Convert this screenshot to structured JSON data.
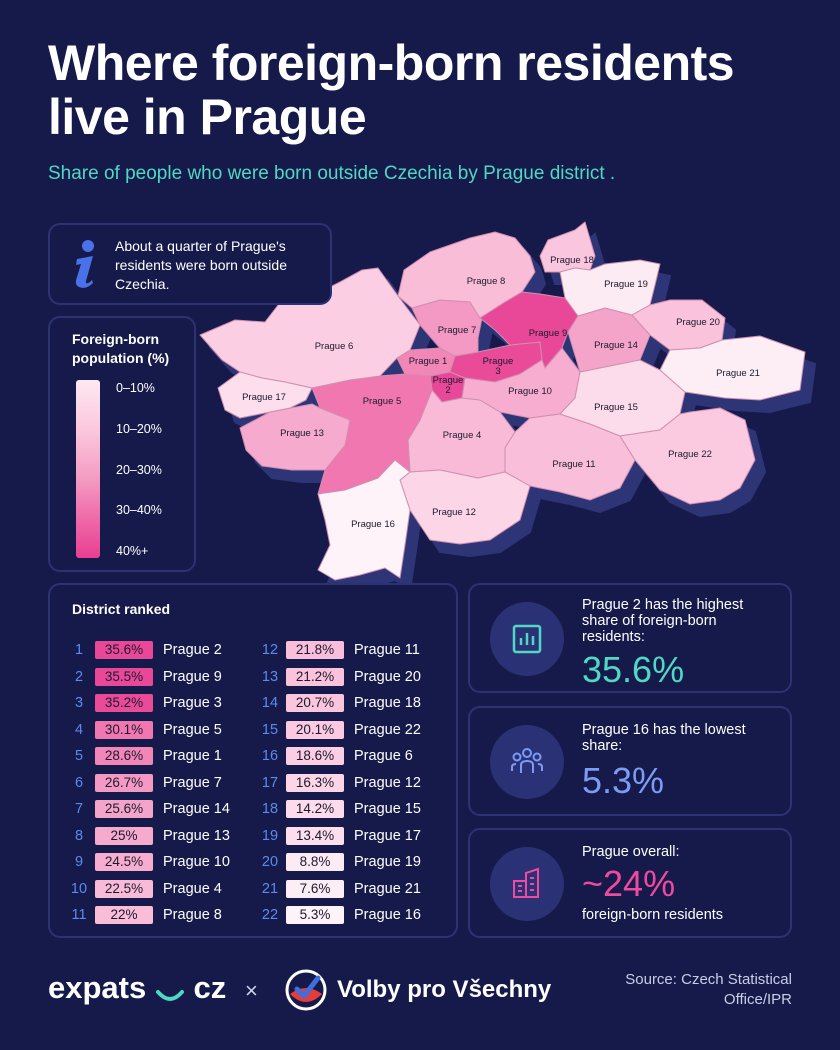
{
  "title": "Where foreign-born residents live in Prague",
  "subtitle": "Share of people who were born outside Czechia by Prague district .",
  "info": {
    "icon": "info-icon",
    "text": "About a quarter of Prague's residents were born outside Czechia."
  },
  "legend": {
    "title": "Foreign-born population (%)",
    "labels": [
      "0–10%",
      "10–20%",
      "20–30%",
      "30–40%",
      "40%+"
    ]
  },
  "colors": {
    "background": "#161a4a",
    "teal": "#4fd8c4",
    "blue_accent": "#5b8bf0",
    "pink_accent": "#ee4aa0"
  },
  "map": {
    "districts": [
      {
        "name": "Prague 1",
        "share": 28.6
      },
      {
        "name": "Prague 2",
        "share": 35.6
      },
      {
        "name": "Prague 3",
        "share": 35.2
      },
      {
        "name": "Prague 4",
        "share": 22.5
      },
      {
        "name": "Prague 5",
        "share": 30.1
      },
      {
        "name": "Prague 6",
        "share": 18.6
      },
      {
        "name": "Prague 7",
        "share": 26.7
      },
      {
        "name": "Prague 8",
        "share": 22
      },
      {
        "name": "Prague 9",
        "share": 35.5
      },
      {
        "name": "Prague 10",
        "share": 24.5
      },
      {
        "name": "Prague 11",
        "share": 21.8
      },
      {
        "name": "Prague 12",
        "share": 16.3
      },
      {
        "name": "Prague 13",
        "share": 25
      },
      {
        "name": "Prague 14",
        "share": 25.6
      },
      {
        "name": "Prague 15",
        "share": 14.2
      },
      {
        "name": "Prague 16",
        "share": 5.3
      },
      {
        "name": "Prague 17",
        "share": 13.4
      },
      {
        "name": "Prague 18",
        "share": 20.7
      },
      {
        "name": "Prague 19",
        "share": 8.8
      },
      {
        "name": "Prague 20",
        "share": 21.2
      },
      {
        "name": "Prague 21",
        "share": 7.6
      },
      {
        "name": "Prague 22",
        "share": 20.1
      }
    ]
  },
  "ranking": {
    "title": "District ranked",
    "rows": [
      {
        "rank": "1",
        "value": "35.6%",
        "name": "Prague 2",
        "share": 35.6
      },
      {
        "rank": "2",
        "value": "35.5%",
        "name": "Prague 9",
        "share": 35.5
      },
      {
        "rank": "3",
        "value": "35.2%",
        "name": "Prague 3",
        "share": 35.2
      },
      {
        "rank": "4",
        "value": "30.1%",
        "name": "Prague 5",
        "share": 30.1
      },
      {
        "rank": "5",
        "value": "28.6%",
        "name": "Prague 1",
        "share": 28.6
      },
      {
        "rank": "6",
        "value": "26.7%",
        "name": "Prague 7",
        "share": 26.7
      },
      {
        "rank": "7",
        "value": "25.6%",
        "name": "Prague 14",
        "share": 25.6
      },
      {
        "rank": "8",
        "value": "25%",
        "name": "Prague 13",
        "share": 25
      },
      {
        "rank": "9",
        "value": "24.5%",
        "name": "Prague 10",
        "share": 24.5
      },
      {
        "rank": "10",
        "value": "22.5%",
        "name": "Prague 4",
        "share": 22.5
      },
      {
        "rank": "11",
        "value": "22%",
        "name": "Prague 8",
        "share": 22
      },
      {
        "rank": "12",
        "value": "21.8%",
        "name": "Prague 11",
        "share": 21.8
      },
      {
        "rank": "13",
        "value": "21.2%",
        "name": "Prague 20",
        "share": 21.2
      },
      {
        "rank": "14",
        "value": "20.7%",
        "name": "Prague 18",
        "share": 20.7
      },
      {
        "rank": "15",
        "value": "20.1%",
        "name": "Prague 22",
        "share": 20.1
      },
      {
        "rank": "16",
        "value": "18.6%",
        "name": "Prague 6",
        "share": 18.6
      },
      {
        "rank": "17",
        "value": "16.3%",
        "name": "Prague 12",
        "share": 16.3
      },
      {
        "rank": "18",
        "value": "14.2%",
        "name": "Prague 15",
        "share": 14.2
      },
      {
        "rank": "19",
        "value": "13.4%",
        "name": "Prague 17",
        "share": 13.4
      },
      {
        "rank": "20",
        "value": "8.8%",
        "name": "Prague 19",
        "share": 8.8
      },
      {
        "rank": "21",
        "value": "7.6%",
        "name": "Prague 21",
        "share": 7.6
      },
      {
        "rank": "22",
        "value": "5.3%",
        "name": "Prague 16",
        "share": 5.3
      }
    ]
  },
  "stats": {
    "highest": {
      "icon": "bar-chart-icon",
      "text": "Prague 2 has the highest share of foreign-born residents:",
      "value": "35.6%",
      "color": "#4fd8c4"
    },
    "lowest": {
      "icon": "people-group-icon",
      "text": "Prague 16 has the lowest share:",
      "value": "5.3%",
      "color": "#7b9bf5"
    },
    "overall": {
      "icon": "buildings-icon",
      "text": "Prague overall:",
      "value": "~24%",
      "subtext": "foreign-born residents",
      "color": "#ee4aa0"
    }
  },
  "footer": {
    "brand1": "expats",
    "brand1_suffix": "cz",
    "separator": "×",
    "brand2": "Volby pro Všechny",
    "source": "Source: Czech Statistical Office/IPR"
  }
}
